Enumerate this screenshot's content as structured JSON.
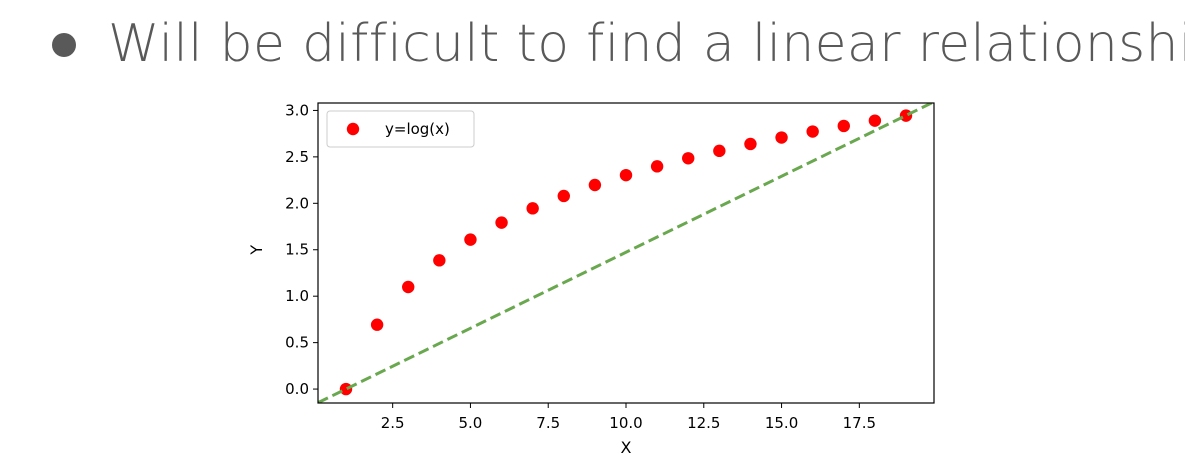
{
  "slide": {
    "bullet_text": "Will be difficult to find a linear relationship"
  },
  "chart_data": {
    "type": "scatter",
    "title": "",
    "xlabel": "X",
    "ylabel": "Y",
    "xlim": [
      0.1,
      19.9
    ],
    "ylim": [
      -0.15,
      3.08
    ],
    "x_ticks": [
      2.5,
      5.0,
      7.5,
      10.0,
      12.5,
      15.0,
      17.5
    ],
    "x_tick_labels": [
      "2.5",
      "5.0",
      "7.5",
      "10.0",
      "12.5",
      "15.0",
      "17.5"
    ],
    "y_ticks": [
      0.0,
      0.5,
      1.0,
      1.5,
      2.0,
      2.5,
      3.0
    ],
    "y_tick_labels": [
      "0.0",
      "0.5",
      "1.0",
      "1.5",
      "2.0",
      "2.5",
      "3.0"
    ],
    "grid": false,
    "legend": {
      "position": "upper-left",
      "entries": [
        "y=log(x)"
      ]
    },
    "series": [
      {
        "name": "y=log(x)",
        "kind": "scatter",
        "color": "#ff0000",
        "x": [
          1,
          2,
          3,
          4,
          5,
          6,
          7,
          8,
          9,
          10,
          11,
          12,
          13,
          14,
          15,
          16,
          17,
          18,
          19
        ],
        "y": [
          0.0,
          0.693,
          1.099,
          1.386,
          1.609,
          1.792,
          1.946,
          2.079,
          2.197,
          2.303,
          2.398,
          2.485,
          2.565,
          2.639,
          2.708,
          2.773,
          2.833,
          2.89,
          2.944
        ]
      },
      {
        "kind": "line",
        "style": "dashed",
        "color": "#6aa84f",
        "x": [
          0.1,
          19.9
        ],
        "y": [
          -0.147,
          3.093
        ]
      }
    ]
  }
}
